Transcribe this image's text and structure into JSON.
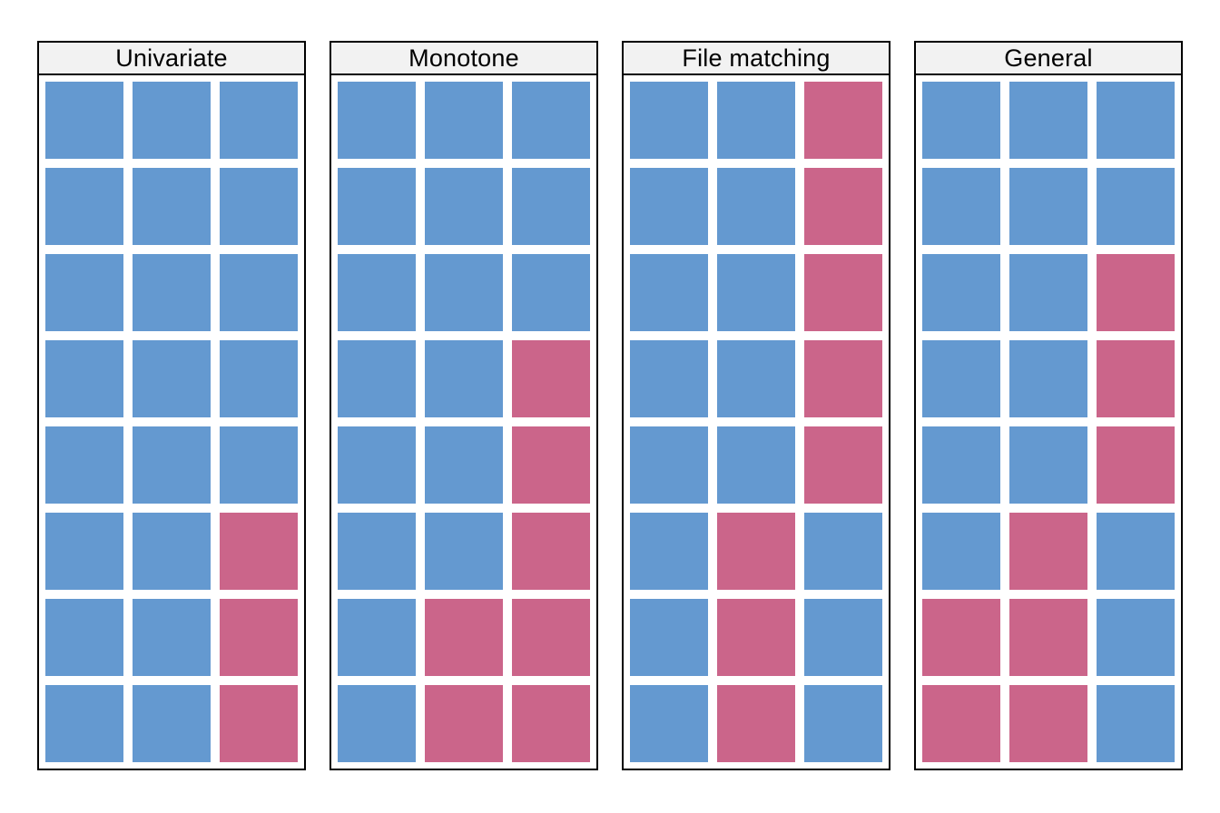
{
  "style": {
    "observed_color": "#6499D0",
    "missing_color": "#CB658A",
    "header_bg": "#F2F2F2",
    "border_color": "#000000",
    "page_bg": "#FFFFFF",
    "value_colors": {
      "O": "#6499D0",
      "M": "#CB658A"
    }
  },
  "chart_data": [
    {
      "type": "heatmap",
      "title": "Univariate",
      "n_rows": 8,
      "n_cols": 3,
      "cells": [
        [
          "O",
          "O",
          "O"
        ],
        [
          "O",
          "O",
          "O"
        ],
        [
          "O",
          "O",
          "O"
        ],
        [
          "O",
          "O",
          "O"
        ],
        [
          "O",
          "O",
          "O"
        ],
        [
          "O",
          "O",
          "M"
        ],
        [
          "O",
          "O",
          "M"
        ],
        [
          "O",
          "O",
          "M"
        ]
      ]
    },
    {
      "type": "heatmap",
      "title": "Monotone",
      "n_rows": 8,
      "n_cols": 3,
      "cells": [
        [
          "O",
          "O",
          "O"
        ],
        [
          "O",
          "O",
          "O"
        ],
        [
          "O",
          "O",
          "O"
        ],
        [
          "O",
          "O",
          "M"
        ],
        [
          "O",
          "O",
          "M"
        ],
        [
          "O",
          "O",
          "M"
        ],
        [
          "O",
          "M",
          "M"
        ],
        [
          "O",
          "M",
          "M"
        ]
      ]
    },
    {
      "type": "heatmap",
      "title": "File matching",
      "n_rows": 8,
      "n_cols": 3,
      "cells": [
        [
          "O",
          "O",
          "M"
        ],
        [
          "O",
          "O",
          "M"
        ],
        [
          "O",
          "O",
          "M"
        ],
        [
          "O",
          "O",
          "M"
        ],
        [
          "O",
          "O",
          "M"
        ],
        [
          "O",
          "M",
          "O"
        ],
        [
          "O",
          "M",
          "O"
        ],
        [
          "O",
          "M",
          "O"
        ]
      ]
    },
    {
      "type": "heatmap",
      "title": "General",
      "n_rows": 8,
      "n_cols": 3,
      "cells": [
        [
          "O",
          "O",
          "O"
        ],
        [
          "O",
          "O",
          "O"
        ],
        [
          "O",
          "O",
          "M"
        ],
        [
          "O",
          "O",
          "M"
        ],
        [
          "O",
          "O",
          "M"
        ],
        [
          "O",
          "M",
          "O"
        ],
        [
          "M",
          "M",
          "O"
        ],
        [
          "M",
          "M",
          "O"
        ]
      ]
    }
  ]
}
